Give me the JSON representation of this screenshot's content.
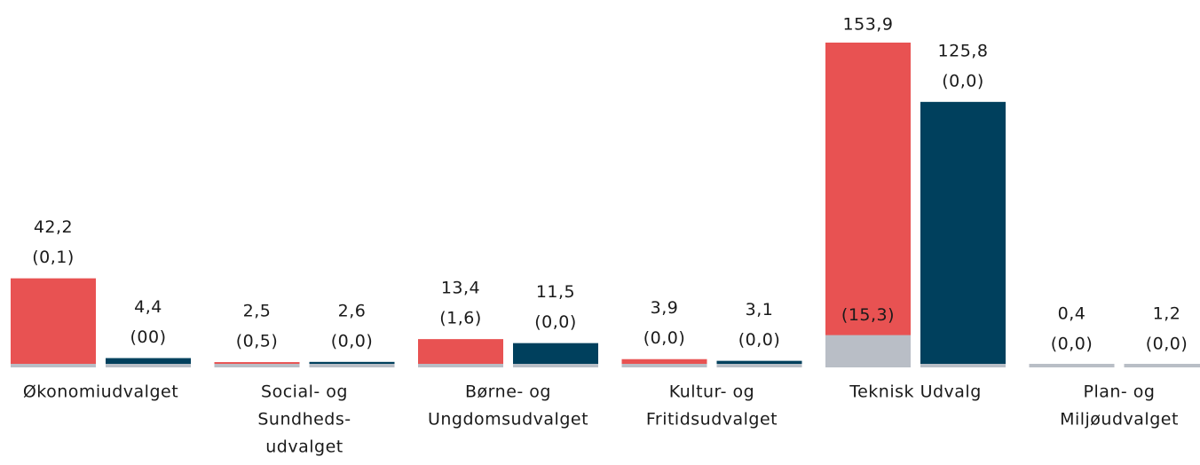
{
  "chart_data": {
    "type": "bar",
    "categories": [
      [
        "Økonomiudvalget"
      ],
      [
        "Social- og",
        "Sundheds-",
        "udvalget"
      ],
      [
        "Børne- og",
        "Ungdomsudvalget"
      ],
      [
        "Kultur- og",
        "Fritidsudvalget"
      ],
      [
        "Teknisk Udvalg"
      ],
      [
        "Plan- og",
        "Miljøudvalget"
      ]
    ],
    "series": [
      {
        "color": "#e85252",
        "values": [
          42.2,
          2.5,
          13.4,
          3.9,
          153.9,
          0.4
        ],
        "value_labels": [
          "42,2",
          "2,5",
          "13,4",
          "3,9",
          "153,9",
          "0,4"
        ],
        "sub_color": "#b9bec6",
        "sub_values": [
          0.1,
          0.5,
          1.6,
          0.0,
          15.3,
          0.0
        ],
        "sub_value_labels": [
          "(0,1)",
          "(0,5)",
          "(1,6)",
          "(0,0)",
          "(15,3)",
          "(0,0)"
        ]
      },
      {
        "color": "#00405d",
        "values": [
          4.4,
          2.6,
          11.5,
          3.1,
          125.8,
          1.2
        ],
        "value_labels": [
          "4,4",
          "2,6",
          "11,5",
          "3,1",
          "125,8",
          "1,2"
        ],
        "sub_color": "#b9bec6",
        "sub_values": [
          0,
          0.0,
          0.0,
          0.0,
          0.0,
          0.0
        ],
        "sub_value_labels": [
          "(00)",
          "(0,0)",
          "(0,0)",
          "(0,0)",
          "(0,0)",
          "(0,0)"
        ]
      }
    ]
  }
}
